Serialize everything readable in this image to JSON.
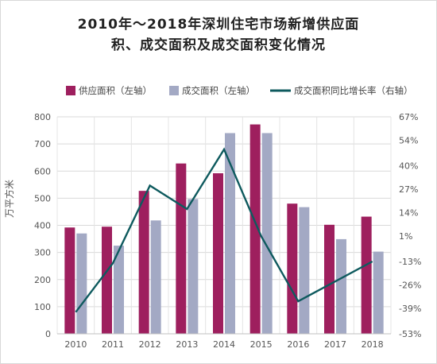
{
  "chart_data": {
    "type": "bar",
    "title_line1": "2010年～2018年深圳住宅市场新增供应面",
    "title_line2": "积、成交面积及成交面积变化情况",
    "ylabel": "万平方米",
    "categories": [
      "2010",
      "2011",
      "2012",
      "2013",
      "2014",
      "2015",
      "2016",
      "2017",
      "2018"
    ],
    "ylim": [
      0,
      800
    ],
    "y_ticks": [
      "0",
      "100",
      "200",
      "300",
      "400",
      "500",
      "600",
      "700",
      "800"
    ],
    "y2lim": [
      -53,
      67
    ],
    "y2_ticks": [
      "-53%",
      "-39%",
      "-26%",
      "-13%",
      "1%",
      "14%",
      "27%",
      "40%",
      "54%",
      "67%"
    ],
    "y2_tick_values": [
      -53,
      -39,
      -26,
      -13,
      1,
      14,
      27,
      40,
      54,
      67
    ],
    "grid": true,
    "legend_position": "top",
    "series": [
      {
        "name": "供应面积（左轴）",
        "type": "bar",
        "axis": "left",
        "color": "#9e1f5e",
        "values": [
          392,
          395,
          527,
          628,
          592,
          772,
          480,
          402,
          432
        ]
      },
      {
        "name": "成交面积（左轴）",
        "type": "bar",
        "axis": "left",
        "color": "#a3a9c4",
        "values": [
          370,
          325,
          418,
          497,
          740,
          740,
          467,
          349,
          303
        ]
      },
      {
        "name": "成交面积同比增长率（右轴）",
        "type": "line",
        "axis": "right",
        "color": "#0e5a5e",
        "values": [
          -41,
          -14,
          29,
          16,
          49,
          1,
          -35,
          -24,
          -13
        ]
      }
    ]
  }
}
